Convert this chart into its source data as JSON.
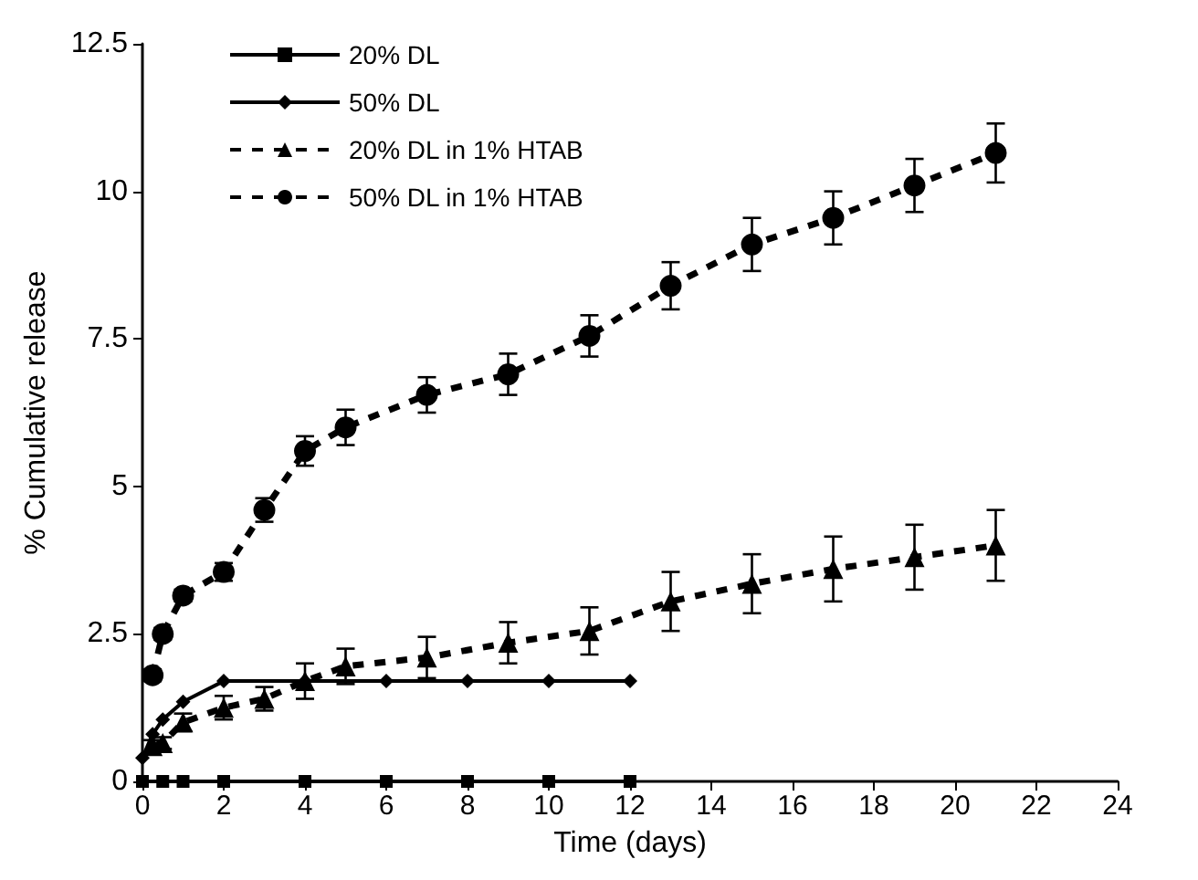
{
  "chart_data": {
    "type": "line",
    "xlabel": "Time (days)",
    "ylabel": "% Cumulative release",
    "xlim": [
      0,
      24
    ],
    "xticks": [
      0,
      2,
      4,
      6,
      8,
      10,
      12,
      14,
      16,
      18,
      20,
      22,
      24
    ],
    "ylim": [
      0,
      12.5
    ],
    "yticks": [
      0,
      2.5,
      5,
      7.5,
      10,
      12.5
    ],
    "grid": false,
    "legend": "top left",
    "series": [
      {
        "name": "20% DL",
        "color": "#000000",
        "marker": "square",
        "line_style": "solid",
        "x": [
          0,
          0.5,
          1,
          2,
          4,
          6,
          8,
          10,
          12
        ],
        "values": [
          0,
          0,
          0,
          0,
          0,
          0,
          0,
          0,
          0
        ]
      },
      {
        "name": "50% DL",
        "color": "#000000",
        "marker": "diamond",
        "line_style": "solid",
        "x": [
          0,
          0.25,
          0.5,
          1,
          2,
          4,
          6,
          8,
          10,
          12
        ],
        "values": [
          0.4,
          0.8,
          1.05,
          1.35,
          1.7,
          1.7,
          1.7,
          1.7,
          1.7,
          1.7
        ]
      },
      {
        "name": "20% DL in 1% HTAB",
        "color": "#000000",
        "marker": "triangle",
        "line_style": "dashed",
        "x": [
          0.25,
          0.5,
          1,
          2,
          3,
          4,
          5,
          7,
          9,
          11,
          13,
          15,
          17,
          19,
          21
        ],
        "values": [
          0.6,
          0.65,
          1.0,
          1.25,
          1.4,
          1.7,
          1.95,
          2.1,
          2.35,
          2.55,
          3.05,
          3.35,
          3.6,
          3.8,
          4.0
        ],
        "errors": [
          0.1,
          0.1,
          0.15,
          0.2,
          0.2,
          0.3,
          0.3,
          0.35,
          0.35,
          0.4,
          0.5,
          0.5,
          0.55,
          0.55,
          0.6
        ]
      },
      {
        "name": "50% DL in 1% HTAB",
        "color": "#000000",
        "marker": "circle",
        "line_style": "dashed",
        "x": [
          0.25,
          0.5,
          1,
          2,
          3,
          4,
          5,
          7,
          9,
          11,
          13,
          15,
          17,
          19,
          21
        ],
        "values": [
          1.8,
          2.5,
          3.15,
          3.55,
          4.6,
          5.6,
          6.0,
          6.55,
          6.9,
          7.55,
          8.4,
          9.1,
          9.55,
          10.1,
          10.65
        ],
        "errors": [
          0.1,
          0.1,
          0.1,
          0.15,
          0.2,
          0.25,
          0.3,
          0.3,
          0.35,
          0.35,
          0.4,
          0.45,
          0.45,
          0.45,
          0.5
        ]
      }
    ]
  }
}
